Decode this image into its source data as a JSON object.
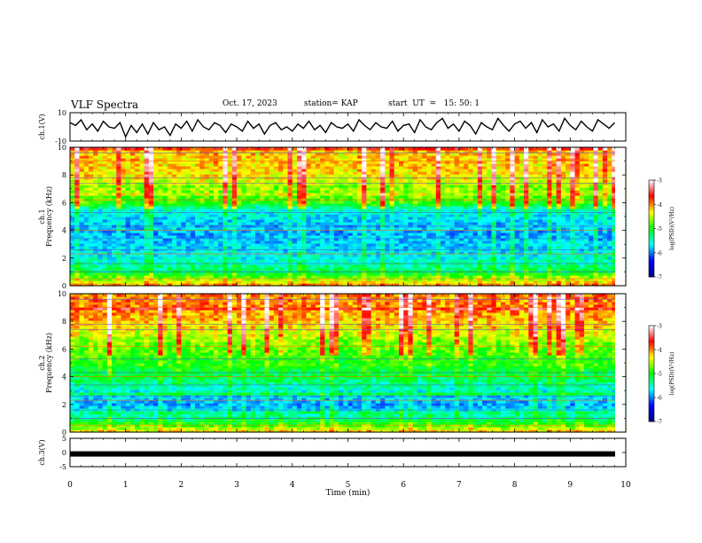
{
  "chart_data": {
    "type": "heatmap",
    "title": "VLF Spectra",
    "date": "Oct. 17, 2023",
    "station_text": "station= KAP",
    "start_text": "start  UT  =   15: 50: 1",
    "xlabel": "Time  (min)",
    "xlim": [
      0,
      10
    ],
    "x_ticks": [
      "0",
      "1",
      "2",
      "3",
      "4",
      "5",
      "6",
      "7",
      "8",
      "9",
      "10"
    ],
    "colormap": [
      "#000080",
      "#0000ff",
      "#00ffff",
      "#00ff00",
      "#ffff00",
      "#ff0000",
      "#ffffff"
    ],
    "panels": [
      {
        "id": "ch1-waveform",
        "type": "line",
        "ylabel": "ch.1(V)",
        "ylim": [
          -10,
          10
        ],
        "y_ticks": [
          "10",
          "-10"
        ],
        "series_note": "",
        "x": [
          0.0,
          0.1,
          0.2,
          0.3,
          0.4,
          0.5,
          0.6,
          0.7,
          0.8,
          0.9,
          1.0,
          1.1,
          1.2,
          1.3,
          1.4,
          1.5,
          1.6,
          1.7,
          1.8,
          1.9,
          2.0,
          2.1,
          2.2,
          2.3,
          2.4,
          2.5,
          2.6,
          2.7,
          2.8,
          2.9,
          3.0,
          3.1,
          3.2,
          3.3,
          3.4,
          3.5,
          3.6,
          3.7,
          3.8,
          3.9,
          4.0,
          4.1,
          4.2,
          4.3,
          4.4,
          4.5,
          4.6,
          4.7,
          4.8,
          4.9,
          5.0,
          5.1,
          5.2,
          5.3,
          5.4,
          5.5,
          5.6,
          5.7,
          5.8,
          5.9,
          6.0,
          6.1,
          6.2,
          6.3,
          6.4,
          6.5,
          6.6,
          6.7,
          6.8,
          6.9,
          7.0,
          7.1,
          7.2,
          7.3,
          7.4,
          7.5,
          7.6,
          7.7,
          7.8,
          7.9,
          8.0,
          8.1,
          8.2,
          8.3,
          8.4,
          8.5,
          8.6,
          8.7,
          8.8,
          8.9,
          9.0,
          9.1,
          9.2,
          9.3,
          9.4,
          9.5,
          9.6,
          9.7,
          9.8
        ],
        "y": [
          3,
          1,
          5,
          -2,
          2,
          -3,
          4,
          0,
          -1,
          3,
          -7,
          1,
          -4,
          2,
          -5,
          3,
          -2,
          0,
          -6,
          2,
          -1,
          4,
          -3,
          5,
          0,
          -2,
          3,
          1,
          -4,
          2,
          0,
          -3,
          4,
          -1,
          2,
          -5,
          1,
          3,
          -2,
          0,
          -3,
          2,
          -1,
          4,
          -2,
          1,
          -4,
          3,
          0,
          -1,
          2,
          -3,
          5,
          1,
          -2,
          3,
          0,
          -1,
          4,
          -3,
          1,
          2,
          -4,
          5,
          0,
          -2,
          3,
          6,
          -1,
          2,
          -3,
          4,
          1,
          -5,
          3,
          0,
          -2,
          6,
          1,
          -3,
          2,
          4,
          -1,
          3,
          -4,
          5,
          0,
          2,
          -3,
          6,
          1,
          -2,
          4,
          0,
          -3,
          5,
          2,
          -1,
          3
        ]
      },
      {
        "id": "ch1-spectrogram",
        "type": "heatmap",
        "ylabel": "ch.1\nFrequency  (kHz)",
        "ylim": [
          0,
          10
        ],
        "y_ticks": [
          "0",
          "2",
          "4",
          "6",
          "8",
          "10"
        ],
        "colorbar": {
          "label": "log(PSD)(V²/Hz)",
          "range": [
            -7,
            -3
          ],
          "ticks": [
            "-3",
            "-4",
            "-5",
            "-6",
            "-7"
          ]
        },
        "profile_log_psd": [
          {
            "f": 0.0,
            "v": -4.0
          },
          {
            "f": 0.5,
            "v": -4.6
          },
          {
            "f": 1.0,
            "v": -5.2
          },
          {
            "f": 2.0,
            "v": -5.6
          },
          {
            "f": 3.0,
            "v": -5.8
          },
          {
            "f": 4.0,
            "v": -5.9
          },
          {
            "f": 5.0,
            "v": -5.7
          },
          {
            "f": 5.6,
            "v": -5.5
          },
          {
            "f": 6.0,
            "v": -4.9
          },
          {
            "f": 7.0,
            "v": -4.6
          },
          {
            "f": 8.0,
            "v": -4.3
          },
          {
            "f": 9.0,
            "v": -4.2
          },
          {
            "f": 10.0,
            "v": -4.2
          }
        ]
      },
      {
        "id": "ch2-spectrogram",
        "type": "heatmap",
        "ylabel": "ch.2\nFrequency  (kHz)",
        "ylim": [
          0,
          10
        ],
        "y_ticks": [
          "0",
          "2",
          "4",
          "6",
          "8",
          "10"
        ],
        "colorbar": {
          "label": "log(PSD)(V²/Hz)",
          "range": [
            -7,
            -3
          ],
          "ticks": [
            "-3",
            "-4",
            "-5",
            "-6",
            "-7"
          ]
        },
        "profile_log_psd": [
          {
            "f": 0.0,
            "v": -4.2
          },
          {
            "f": 0.5,
            "v": -4.8
          },
          {
            "f": 1.0,
            "v": -5.3
          },
          {
            "f": 2.0,
            "v": -5.9
          },
          {
            "f": 3.0,
            "v": -5.6
          },
          {
            "f": 4.0,
            "v": -5.2
          },
          {
            "f": 5.0,
            "v": -5.0
          },
          {
            "f": 6.0,
            "v": -4.8
          },
          {
            "f": 7.0,
            "v": -4.5
          },
          {
            "f": 8.0,
            "v": -4.2
          },
          {
            "f": 9.0,
            "v": -4.0
          },
          {
            "f": 10.0,
            "v": -4.0
          }
        ]
      },
      {
        "id": "ch3-waveform",
        "type": "line",
        "ylabel": "ch.3(V)",
        "ylim": [
          -5,
          5
        ],
        "y_ticks": [
          "5",
          "0",
          "-5"
        ],
        "level_value": -0.5
      }
    ]
  }
}
